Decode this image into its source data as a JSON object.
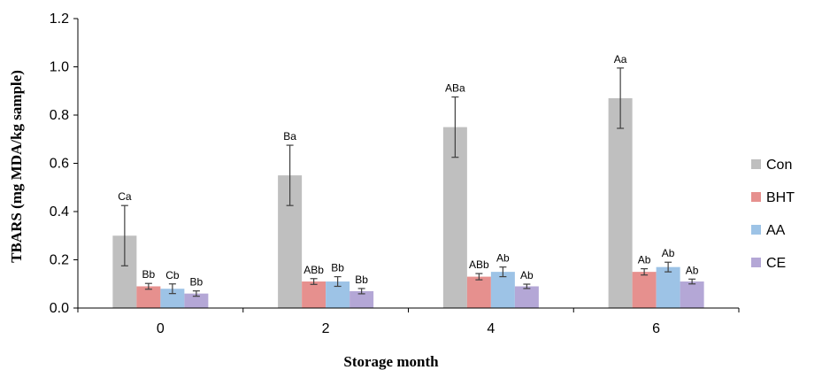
{
  "chart_data": {
    "type": "bar",
    "xlabel": "Storage month",
    "ylabel": "TBARS (mg MDA/kg sample)",
    "ylim": [
      0,
      1.2
    ],
    "yticks": [
      "0.0",
      "0.2",
      "0.4",
      "0.6",
      "0.8",
      "1.0",
      "1.2"
    ],
    "categories": [
      "0",
      "2",
      "4",
      "6"
    ],
    "grid": false,
    "legend_position": "right",
    "series": [
      {
        "name": "Con",
        "color": "#bfbfbf",
        "values": [
          0.3,
          0.55,
          0.75,
          0.87
        ],
        "errors": [
          0.125,
          0.125,
          0.125,
          0.125
        ],
        "labels": [
          "Ca",
          "Ba",
          "ABa",
          "Aa"
        ]
      },
      {
        "name": "BHT",
        "color": "#e6908e",
        "values": [
          0.09,
          0.11,
          0.13,
          0.15
        ],
        "errors": [
          0.012,
          0.012,
          0.013,
          0.013
        ],
        "labels": [
          "Bb",
          "ABb",
          "ABb",
          "Ab"
        ]
      },
      {
        "name": "AA",
        "color": "#9dc3e6",
        "values": [
          0.08,
          0.11,
          0.15,
          0.17
        ],
        "errors": [
          0.02,
          0.02,
          0.02,
          0.02
        ],
        "labels": [
          "Cb",
          "Bb",
          "Ab",
          "Ab"
        ]
      },
      {
        "name": "CE",
        "color": "#b4a7d6",
        "values": [
          0.06,
          0.07,
          0.09,
          0.11
        ],
        "errors": [
          0.011,
          0.011,
          0.009,
          0.01
        ],
        "labels": [
          "Bb",
          "Bb",
          "Ab",
          "Ab"
        ]
      }
    ]
  }
}
